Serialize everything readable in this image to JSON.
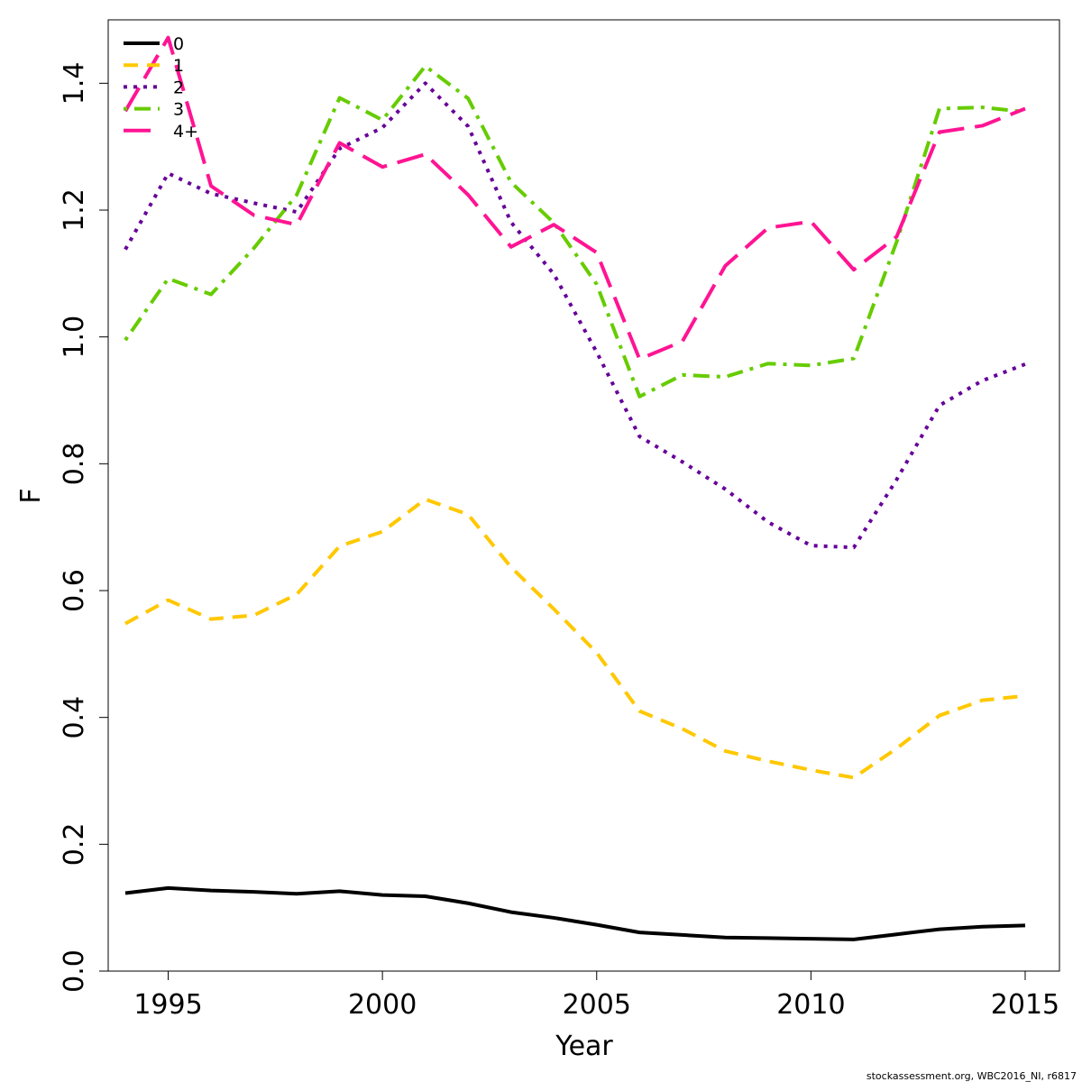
{
  "chart_data": {
    "type": "line",
    "title": "",
    "xlabel": "Year",
    "ylabel": "F",
    "xlim": [
      1993.6,
      2015.8
    ],
    "ylim": [
      0,
      1.5
    ],
    "xticks": [
      1995,
      2000,
      2005,
      2010,
      2015
    ],
    "yticks": [
      0.0,
      0.2,
      0.4,
      0.6,
      0.8,
      1.0,
      1.2,
      1.4
    ],
    "xtick_labels": [
      "1995",
      "2000",
      "2005",
      "2010",
      "2015"
    ],
    "ytick_labels": [
      "0.0",
      "0.2",
      "0.4",
      "0.6",
      "0.8",
      "1.0",
      "1.2",
      "1.4"
    ],
    "grid": false,
    "legend_position": "top-left",
    "x": [
      1994,
      1995,
      1996,
      1997,
      1998,
      1999,
      2000,
      2001,
      2002,
      2003,
      2004,
      2005,
      2006,
      2007,
      2008,
      2009,
      2010,
      2011,
      2012,
      2013,
      2014,
      2015
    ],
    "series": [
      {
        "name": "0",
        "color": "#000000",
        "dash": "solid",
        "values": [
          0.123,
          0.131,
          0.127,
          0.125,
          0.122,
          0.126,
          0.12,
          0.118,
          0.107,
          0.093,
          0.084,
          0.073,
          0.061,
          0.057,
          0.053,
          0.052,
          0.051,
          0.05,
          0.058,
          0.066,
          0.07,
          0.072
        ]
      },
      {
        "name": "1",
        "color": "#FFC800",
        "dash": "dashed",
        "values": [
          0.548,
          0.585,
          0.555,
          0.561,
          0.594,
          0.67,
          0.693,
          0.744,
          0.72,
          0.637,
          0.571,
          0.502,
          0.41,
          0.382,
          0.347,
          0.331,
          0.317,
          0.305,
          0.351,
          0.403,
          0.427,
          0.434
        ]
      },
      {
        "name": "2",
        "color": "#660099",
        "dash": "dotted",
        "values": [
          1.138,
          1.258,
          1.226,
          1.211,
          1.197,
          1.297,
          1.33,
          1.4,
          1.332,
          1.181,
          1.099,
          0.976,
          0.843,
          0.803,
          0.76,
          0.708,
          0.671,
          0.668,
          0.775,
          0.892,
          0.931,
          0.957
        ]
      },
      {
        "name": "3",
        "color": "#66CC00",
        "dash": "dotdash",
        "values": [
          0.995,
          1.092,
          1.067,
          1.14,
          1.224,
          1.377,
          1.342,
          1.427,
          1.376,
          1.244,
          1.18,
          1.083,
          0.906,
          0.94,
          0.937,
          0.958,
          0.955,
          0.966,
          1.15,
          1.36,
          1.362,
          1.355
        ]
      },
      {
        "name": "4+",
        "color": "#FF1493",
        "dash": "longdash",
        "values": [
          1.356,
          1.472,
          1.238,
          1.192,
          1.177,
          1.306,
          1.268,
          1.288,
          1.224,
          1.142,
          1.177,
          1.133,
          0.965,
          0.993,
          1.112,
          1.172,
          1.182,
          1.106,
          1.158,
          1.323,
          1.333,
          1.36
        ]
      }
    ]
  },
  "footer": {
    "credit": "stockassessment.org, WBC2016_NI, r6817"
  }
}
